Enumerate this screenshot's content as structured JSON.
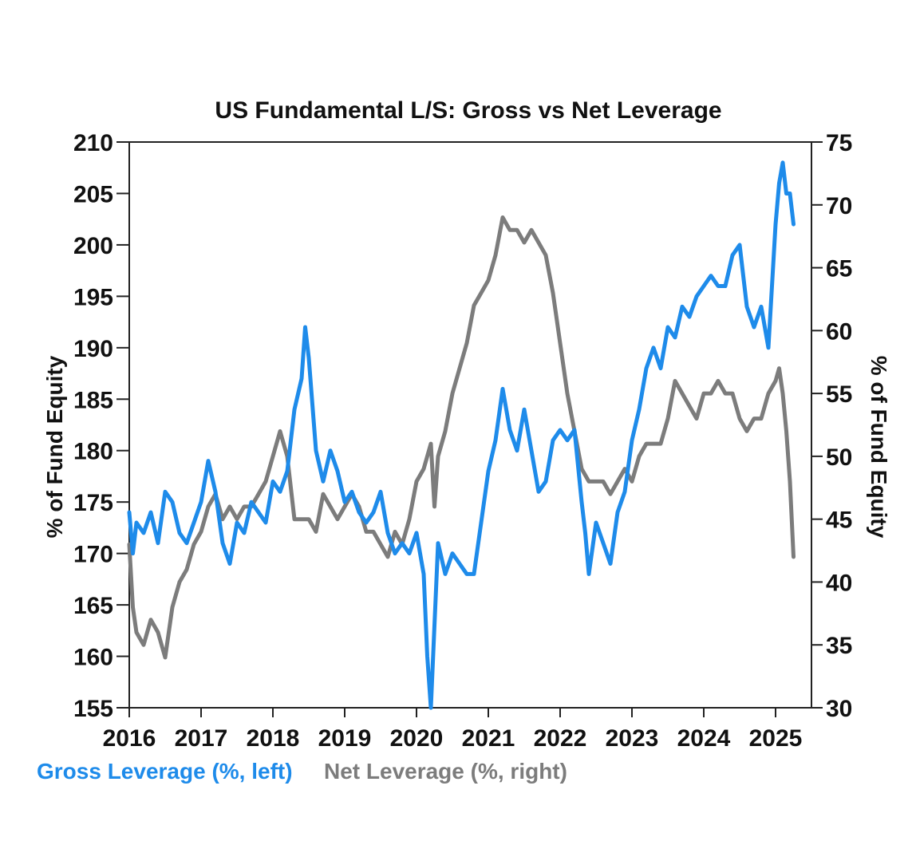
{
  "chart_data": {
    "type": "line",
    "title": "US Fundamental L/S: Gross vs Net Leverage",
    "ylabel_left": "% of Fund Equity",
    "ylabel_right": "% of Fund Equity",
    "xlim": [
      2016,
      2025.5
    ],
    "ylim_left": [
      155,
      210
    ],
    "ylim_right": [
      30,
      75
    ],
    "x_ticks": [
      "2016",
      "2017",
      "2018",
      "2019",
      "2020",
      "2021",
      "2022",
      "2023",
      "2024",
      "2025"
    ],
    "y_left_ticks": [
      "210",
      "205",
      "200",
      "195",
      "190",
      "185",
      "180",
      "175",
      "170",
      "165",
      "160",
      "155"
    ],
    "y_right_ticks": [
      "75",
      "70",
      "65",
      "60",
      "55",
      "50",
      "45",
      "40",
      "35",
      "30"
    ],
    "grid": false,
    "legend_position": "bottom-left",
    "series": [
      {
        "name": "Gross Leverage (%, left)",
        "axis": "left",
        "color": "#1E8BEA",
        "x": [
          2016.0,
          2016.05,
          2016.1,
          2016.2,
          2016.3,
          2016.4,
          2016.5,
          2016.6,
          2016.7,
          2016.8,
          2016.9,
          2017.0,
          2017.1,
          2017.2,
          2017.3,
          2017.4,
          2017.5,
          2017.6,
          2017.7,
          2017.8,
          2017.9,
          2018.0,
          2018.1,
          2018.2,
          2018.3,
          2018.4,
          2018.45,
          2018.5,
          2018.6,
          2018.7,
          2018.8,
          2018.9,
          2019.0,
          2019.1,
          2019.2,
          2019.3,
          2019.4,
          2019.5,
          2019.6,
          2019.7,
          2019.8,
          2019.9,
          2020.0,
          2020.1,
          2020.15,
          2020.2,
          2020.25,
          2020.3,
          2020.4,
          2020.5,
          2020.6,
          2020.7,
          2020.8,
          2020.9,
          2021.0,
          2021.1,
          2021.2,
          2021.3,
          2021.4,
          2021.5,
          2021.6,
          2021.7,
          2021.8,
          2021.9,
          2022.0,
          2022.1,
          2022.2,
          2022.3,
          2022.35,
          2022.4,
          2022.5,
          2022.6,
          2022.7,
          2022.8,
          2022.9,
          2023.0,
          2023.1,
          2023.2,
          2023.3,
          2023.4,
          2023.5,
          2023.6,
          2023.7,
          2023.8,
          2023.9,
          2024.0,
          2024.1,
          2024.2,
          2024.3,
          2024.4,
          2024.5,
          2024.6,
          2024.7,
          2024.8,
          2024.9,
          2025.0,
          2025.05,
          2025.1,
          2025.15,
          2025.2,
          2025.25
        ],
        "values": [
          174,
          170,
          173,
          172,
          174,
          171,
          176,
          175,
          172,
          171,
          173,
          175,
          179,
          176,
          171,
          169,
          173,
          172,
          175,
          174,
          173,
          177,
          176,
          178,
          184,
          187,
          192,
          189,
          180,
          177,
          180,
          178,
          175,
          176,
          174,
          173,
          174,
          176,
          172,
          170,
          171,
          170,
          172,
          168,
          160,
          155,
          163,
          171,
          168,
          170,
          169,
          168,
          168,
          173,
          178,
          181,
          186,
          182,
          180,
          184,
          180,
          176,
          177,
          181,
          182,
          181,
          182,
          175,
          172,
          168,
          173,
          171,
          169,
          174,
          176,
          181,
          184,
          188,
          190,
          188,
          192,
          191,
          194,
          193,
          195,
          196,
          197,
          196,
          196,
          199,
          200,
          194,
          192,
          194,
          190,
          202,
          206,
          208,
          205,
          205,
          202
        ]
      },
      {
        "name": "Net Leverage (%, right)",
        "axis": "right",
        "color": "#7C7C7C",
        "x": [
          2016.0,
          2016.05,
          2016.1,
          2016.2,
          2016.3,
          2016.4,
          2016.5,
          2016.6,
          2016.7,
          2016.8,
          2016.9,
          2017.0,
          2017.1,
          2017.2,
          2017.3,
          2017.4,
          2017.5,
          2017.6,
          2017.7,
          2017.8,
          2017.9,
          2018.0,
          2018.1,
          2018.2,
          2018.3,
          2018.4,
          2018.5,
          2018.6,
          2018.7,
          2018.8,
          2018.9,
          2019.0,
          2019.1,
          2019.2,
          2019.3,
          2019.4,
          2019.5,
          2019.6,
          2019.7,
          2019.8,
          2019.9,
          2020.0,
          2020.1,
          2020.2,
          2020.25,
          2020.3,
          2020.4,
          2020.5,
          2020.6,
          2020.7,
          2020.8,
          2020.9,
          2021.0,
          2021.1,
          2021.2,
          2021.3,
          2021.4,
          2021.5,
          2021.6,
          2021.7,
          2021.8,
          2021.9,
          2022.0,
          2022.1,
          2022.2,
          2022.3,
          2022.4,
          2022.5,
          2022.6,
          2022.7,
          2022.8,
          2022.9,
          2023.0,
          2023.1,
          2023.2,
          2023.3,
          2023.4,
          2023.5,
          2023.6,
          2023.7,
          2023.8,
          2023.9,
          2024.0,
          2024.1,
          2024.2,
          2024.3,
          2024.4,
          2024.5,
          2024.6,
          2024.7,
          2024.8,
          2024.9,
          2025.0,
          2025.05,
          2025.1,
          2025.15,
          2025.2,
          2025.25
        ],
        "values": [
          43,
          38,
          36,
          35,
          37,
          36,
          34,
          38,
          40,
          41,
          43,
          44,
          46,
          47,
          45,
          46,
          45,
          46,
          46,
          47,
          48,
          50,
          52,
          50,
          45,
          45,
          45,
          44,
          47,
          46,
          45,
          46,
          47,
          46,
          44,
          44,
          43,
          42,
          44,
          43,
          45,
          48,
          49,
          51,
          46,
          50,
          52,
          55,
          57,
          59,
          62,
          63,
          64,
          66,
          69,
          68,
          68,
          67,
          68,
          67,
          66,
          63,
          59,
          55,
          52,
          49,
          48,
          48,
          48,
          47,
          48,
          49,
          48,
          50,
          51,
          51,
          51,
          53,
          56,
          55,
          54,
          53,
          55,
          55,
          56,
          55,
          55,
          53,
          52,
          53,
          53,
          55,
          56,
          57,
          55,
          52,
          48,
          42
        ]
      }
    ]
  }
}
